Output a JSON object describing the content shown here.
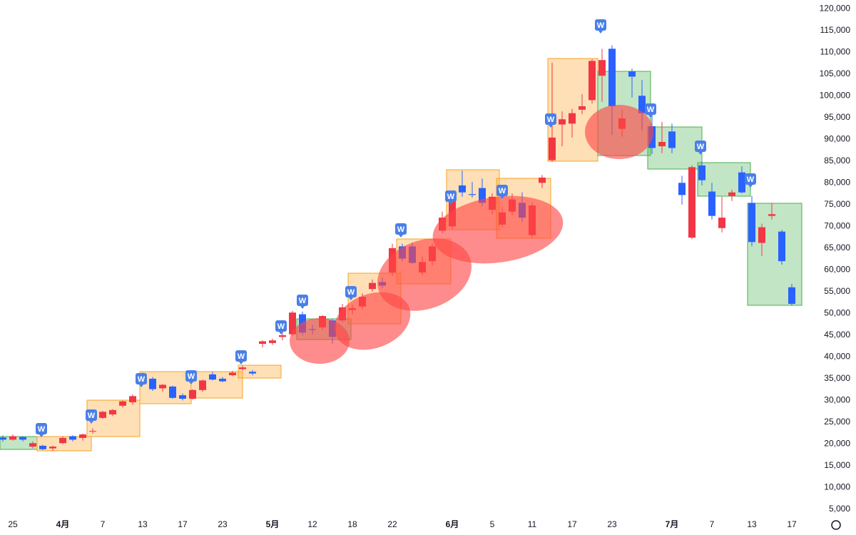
{
  "chart_data": {
    "type": "candlestick",
    "marker_label": "W",
    "up_color": "#f23645",
    "down_color": "#2962ff",
    "categories": [
      null,
      "25",
      null,
      null,
      null,
      null,
      "4月",
      null,
      null,
      null,
      "7",
      null,
      null,
      null,
      "13",
      null,
      null,
      null,
      "17",
      null,
      null,
      null,
      "23",
      null,
      null,
      null,
      null,
      "5月",
      null,
      null,
      null,
      "12",
      null,
      null,
      null,
      "18",
      null,
      null,
      null,
      "22",
      null,
      null,
      null,
      null,
      null,
      "6月",
      null,
      null,
      null,
      "5",
      null,
      null,
      null,
      "11",
      null,
      null,
      null,
      "17",
      null,
      null,
      null,
      "23",
      null,
      null,
      null,
      null,
      null,
      "7月",
      null,
      null,
      null,
      "7",
      null,
      null,
      null,
      "13",
      null,
      null,
      null,
      "17"
    ],
    "open": [
      21500,
      21000,
      21600,
      19400,
      19600,
      19000,
      20200,
      21800,
      21400,
      23000,
      26000,
      26800,
      28800,
      29600,
      36000,
      35000,
      32800,
      33200,
      31200,
      30400,
      32400,
      36000,
      35000,
      35800,
      37200,
      36600,
      43000,
      43200,
      44600,
      45200,
      49800,
      46400,
      46800,
      48400,
      48400,
      50800,
      51600,
      55600,
      57200,
      59400,
      65400,
      65400,
      59400,
      62000,
      69000,
      70000,
      79400,
      77400,
      78800,
      73800,
      70400,
      73400,
      75400,
      68000,
      80000,
      85200,
      93400,
      93600,
      96800,
      99000,
      104600,
      110800,
      92400,
      105600,
      100000,
      93000,
      88400,
      91800,
      80000,
      67400,
      84000,
      78000,
      69600,
      77000,
      82400,
      75400,
      66200,
      72400,
      68800,
      56000
    ],
    "high": [
      22000,
      22200,
      21800,
      20600,
      19800,
      19600,
      21800,
      22000,
      22400,
      23600,
      27600,
      28000,
      30000,
      31400,
      36400,
      35400,
      33800,
      33400,
      31600,
      32600,
      34800,
      36600,
      35400,
      36800,
      38000,
      37000,
      43800,
      44200,
      45600,
      50600,
      50400,
      47400,
      49600,
      48800,
      52200,
      52000,
      54600,
      57800,
      58200,
      66000,
      66000,
      66200,
      63000,
      66000,
      73400,
      77400,
      82800,
      80200,
      81000,
      77600,
      74400,
      77600,
      77800,
      75400,
      81800,
      107600,
      96400,
      97000,
      100400,
      108400,
      110800,
      111600,
      96800,
      106200,
      103600,
      96400,
      94000,
      93600,
      81600,
      84000,
      85000,
      80000,
      76800,
      78400,
      83800,
      77000,
      70600,
      75400,
      69200,
      56800
    ],
    "low": [
      20500,
      20800,
      20600,
      19000,
      18600,
      18400,
      20000,
      20600,
      20800,
      22400,
      25800,
      26400,
      28400,
      29000,
      34800,
      32200,
      32000,
      30400,
      30000,
      30200,
      32000,
      34600,
      34200,
      35600,
      36800,
      35800,
      42200,
      42800,
      43800,
      44800,
      45000,
      45200,
      46200,
      43000,
      48000,
      49800,
      51000,
      55000,
      55800,
      58600,
      62000,
      61400,
      58800,
      61000,
      68400,
      69400,
      76800,
      76600,
      74600,
      72800,
      69800,
      72600,
      71000,
      67400,
      78800,
      84800,
      88400,
      90400,
      95800,
      98200,
      98600,
      91000,
      90600,
      99600,
      92000,
      86600,
      86800,
      86800,
      75000,
      67000,
      79400,
      71600,
      68600,
      75800,
      77600,
      65400,
      63200,
      71600,
      61200,
      51800
    ],
    "close": [
      21000,
      21800,
      21000,
      20200,
      18800,
      19400,
      21400,
      21000,
      22200,
      23000,
      27400,
      27800,
      29800,
      31000,
      35000,
      32600,
      33600,
      30600,
      30400,
      32400,
      34600,
      34800,
      34400,
      36400,
      37600,
      36200,
      43600,
      43800,
      45000,
      50200,
      45600,
      46200,
      49400,
      44600,
      51400,
      51200,
      53800,
      57000,
      56400,
      65000,
      62600,
      61600,
      61800,
      65400,
      72000,
      76600,
      77800,
      77200,
      75400,
      76800,
      73200,
      76200,
      72000,
      74800,
      81200,
      90400,
      94600,
      96000,
      97600,
      108000,
      108200,
      97600,
      94800,
      104400,
      96000,
      88000,
      89400,
      88000,
      77200,
      83600,
      80600,
      72400,
      72000,
      77800,
      77800,
      66400,
      69800,
      72800,
      62000,
      52200
    ],
    "ylim": [
      0,
      122000
    ],
    "yticks": [
      {
        "value": 5000,
        "label": "5,000"
      },
      {
        "value": 10000,
        "label": "10,000"
      },
      {
        "value": 15000,
        "label": "15,000"
      },
      {
        "value": 20000,
        "label": "20,000"
      },
      {
        "value": 25000,
        "label": "25,000"
      },
      {
        "value": 30000,
        "label": "30,000"
      },
      {
        "value": 35000,
        "label": "35,000"
      },
      {
        "value": 40000,
        "label": "40,000"
      },
      {
        "value": 45000,
        "label": "45,000"
      },
      {
        "value": 50000,
        "label": "50,000"
      },
      {
        "value": 55000,
        "label": "55,000"
      },
      {
        "value": 60000,
        "label": "60,000"
      },
      {
        "value": 65000,
        "label": "65,000"
      },
      {
        "value": 70000,
        "label": "70,000"
      },
      {
        "value": 75000,
        "label": "75,000"
      },
      {
        "value": 80000,
        "label": "80,000"
      },
      {
        "value": 85000,
        "label": "85,000"
      },
      {
        "value": 90000,
        "label": "90,000"
      },
      {
        "value": 95000,
        "label": "95,000"
      },
      {
        "value": 100000,
        "label": "100,000"
      },
      {
        "value": 105000,
        "label": "105,000"
      },
      {
        "value": 110000,
        "label": "110,000"
      },
      {
        "value": 115000,
        "label": "115,000"
      },
      {
        "value": 120000,
        "label": "120,000"
      }
    ]
  }
}
